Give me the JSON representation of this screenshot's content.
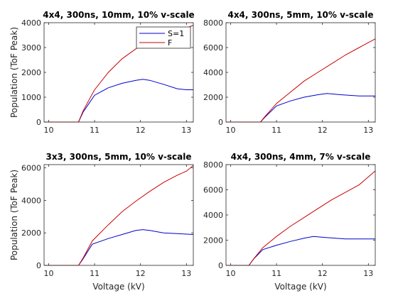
{
  "chart_data": [
    {
      "type": "line",
      "title": "4x4, 300ns, 10mm, 10% v-scale",
      "xlabel": "",
      "ylabel": "Population (ToF Peak)",
      "xlim": [
        9.9,
        13.15
      ],
      "ylim": [
        0,
        4000
      ],
      "xticks": [
        "10",
        "11",
        "12",
        "13"
      ],
      "yticks": [
        "0",
        "1000",
        "2000",
        "3000",
        "4000"
      ],
      "grid": false,
      "legend": {
        "position": "top-right",
        "entries": [
          "S=1",
          "F"
        ]
      },
      "series": [
        {
          "name": "S=1",
          "color": "#0000cc",
          "x": [
            9.9,
            10.65,
            10.75,
            11.0,
            11.3,
            11.6,
            11.9,
            12.05,
            12.2,
            12.5,
            12.8,
            13.0,
            13.15
          ],
          "y": [
            0,
            0,
            400,
            1080,
            1380,
            1560,
            1680,
            1720,
            1680,
            1520,
            1340,
            1300,
            1300
          ]
        },
        {
          "name": "F",
          "color": "#cc0000",
          "x": [
            9.9,
            10.65,
            10.75,
            11.0,
            11.3,
            11.6,
            11.9,
            12.1,
            12.4,
            12.7,
            13.0,
            13.15
          ],
          "y": [
            0,
            0,
            450,
            1300,
            2000,
            2550,
            2950,
            3180,
            3450,
            3620,
            3780,
            3900
          ]
        }
      ]
    },
    {
      "type": "line",
      "title": "4x4, 300ns, 5mm, 10% v-scale",
      "xlabel": "",
      "ylabel": "",
      "xlim": [
        9.9,
        13.15
      ],
      "ylim": [
        0,
        8000
      ],
      "xticks": [
        "10",
        "11",
        "12",
        "13"
      ],
      "yticks": [
        "0",
        "2000",
        "4000",
        "6000",
        "8000"
      ],
      "grid": false,
      "series": [
        {
          "name": "S=1",
          "color": "#0000cc",
          "x": [
            9.9,
            10.65,
            10.75,
            11.0,
            11.3,
            11.6,
            11.9,
            12.1,
            12.4,
            12.8,
            13.15
          ],
          "y": [
            0,
            0,
            400,
            1300,
            1700,
            2000,
            2200,
            2300,
            2200,
            2100,
            2100
          ]
        },
        {
          "name": "F",
          "color": "#cc0000",
          "x": [
            9.9,
            10.65,
            10.75,
            11.0,
            11.3,
            11.6,
            11.9,
            12.2,
            12.5,
            12.8,
            13.15
          ],
          "y": [
            0,
            0,
            450,
            1500,
            2400,
            3300,
            4000,
            4700,
            5400,
            6000,
            6700
          ]
        }
      ]
    },
    {
      "type": "line",
      "title": "3x3, 300ns, 5mm, 10% v-scale",
      "xlabel": "Voltage (kV)",
      "ylabel": "Population (ToF Peak)",
      "xlim": [
        9.9,
        13.15
      ],
      "ylim": [
        0,
        6200
      ],
      "xticks": [
        "10",
        "11",
        "12",
        "13"
      ],
      "yticks": [
        "0",
        "2000",
        "4000",
        "6000"
      ],
      "grid": false,
      "series": [
        {
          "name": "S=1",
          "color": "#0000cc",
          "x": [
            9.9,
            10.65,
            10.75,
            10.95,
            11.3,
            11.6,
            11.9,
            12.05,
            12.2,
            12.5,
            12.8,
            13.15
          ],
          "y": [
            0,
            0,
            400,
            1300,
            1650,
            1900,
            2150,
            2200,
            2150,
            2000,
            1950,
            1900
          ]
        },
        {
          "name": "F",
          "color": "#cc0000",
          "x": [
            9.9,
            10.65,
            10.75,
            10.95,
            11.3,
            11.6,
            11.9,
            12.2,
            12.5,
            12.8,
            13.0,
            13.15
          ],
          "y": [
            0,
            0,
            450,
            1500,
            2500,
            3300,
            3950,
            4550,
            5100,
            5550,
            5800,
            6150
          ]
        }
      ]
    },
    {
      "type": "line",
      "title": "4x4, 300ns, 4mm, 7% v-scale",
      "xlabel": "Voltage (kV)",
      "ylabel": "",
      "xlim": [
        9.9,
        13.15
      ],
      "ylim": [
        0,
        8000
      ],
      "xticks": [
        "10",
        "11",
        "12",
        "13"
      ],
      "yticks": [
        "0",
        "2000",
        "4000",
        "6000",
        "8000"
      ],
      "grid": false,
      "series": [
        {
          "name": "S=1",
          "color": "#0000cc",
          "x": [
            9.9,
            10.4,
            10.5,
            10.7,
            11.0,
            11.3,
            11.6,
            11.8,
            12.1,
            12.5,
            12.8,
            13.15
          ],
          "y": [
            0,
            0,
            500,
            1250,
            1600,
            1900,
            2150,
            2300,
            2200,
            2100,
            2100,
            2100
          ]
        },
        {
          "name": "F",
          "color": "#cc0000",
          "x": [
            9.9,
            10.4,
            10.5,
            10.7,
            11.0,
            11.3,
            11.6,
            11.9,
            12.2,
            12.5,
            12.8,
            13.15
          ],
          "y": [
            0,
            0,
            500,
            1400,
            2300,
            3100,
            3800,
            4500,
            5200,
            5800,
            6400,
            7500
          ]
        }
      ]
    }
  ]
}
